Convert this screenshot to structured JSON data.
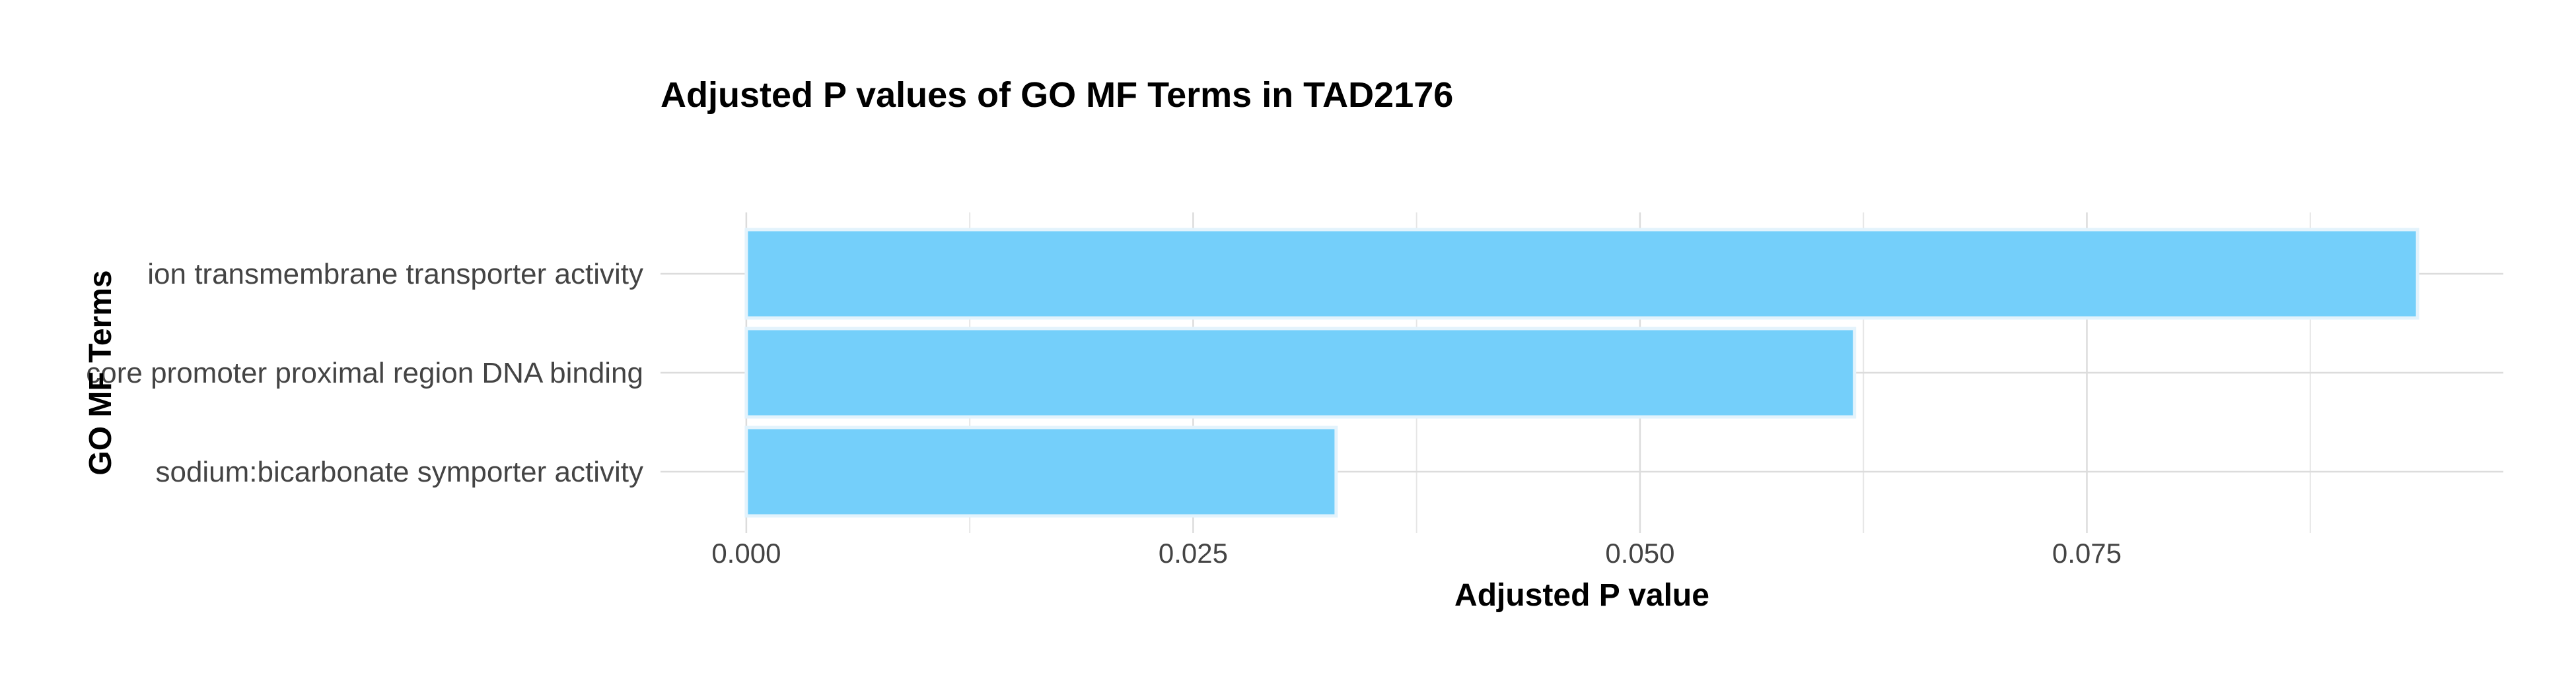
{
  "chart_data": {
    "type": "bar",
    "orientation": "horizontal",
    "title": "Adjusted P values of GO MF Terms in TAD2176",
    "xlabel": "Adjusted P value",
    "ylabel": "GO MF Terms",
    "categories": [
      "ion transmembrane transporter activity",
      "core promoter proximal region DNA binding",
      "sodium:bicarbonate symporter activity"
    ],
    "values": [
      0.0935,
      0.062,
      0.033
    ],
    "xlim": [
      -0.0048,
      0.0983
    ],
    "xticks": [
      0.0,
      0.025,
      0.05,
      0.075
    ],
    "xtick_labels": [
      "0.000",
      "0.025",
      "0.050",
      "0.075"
    ],
    "grid": true,
    "legend": "none",
    "colors": {
      "bar_fill": "#74cffa",
      "bar_stroke": "#e3f3fc"
    }
  }
}
